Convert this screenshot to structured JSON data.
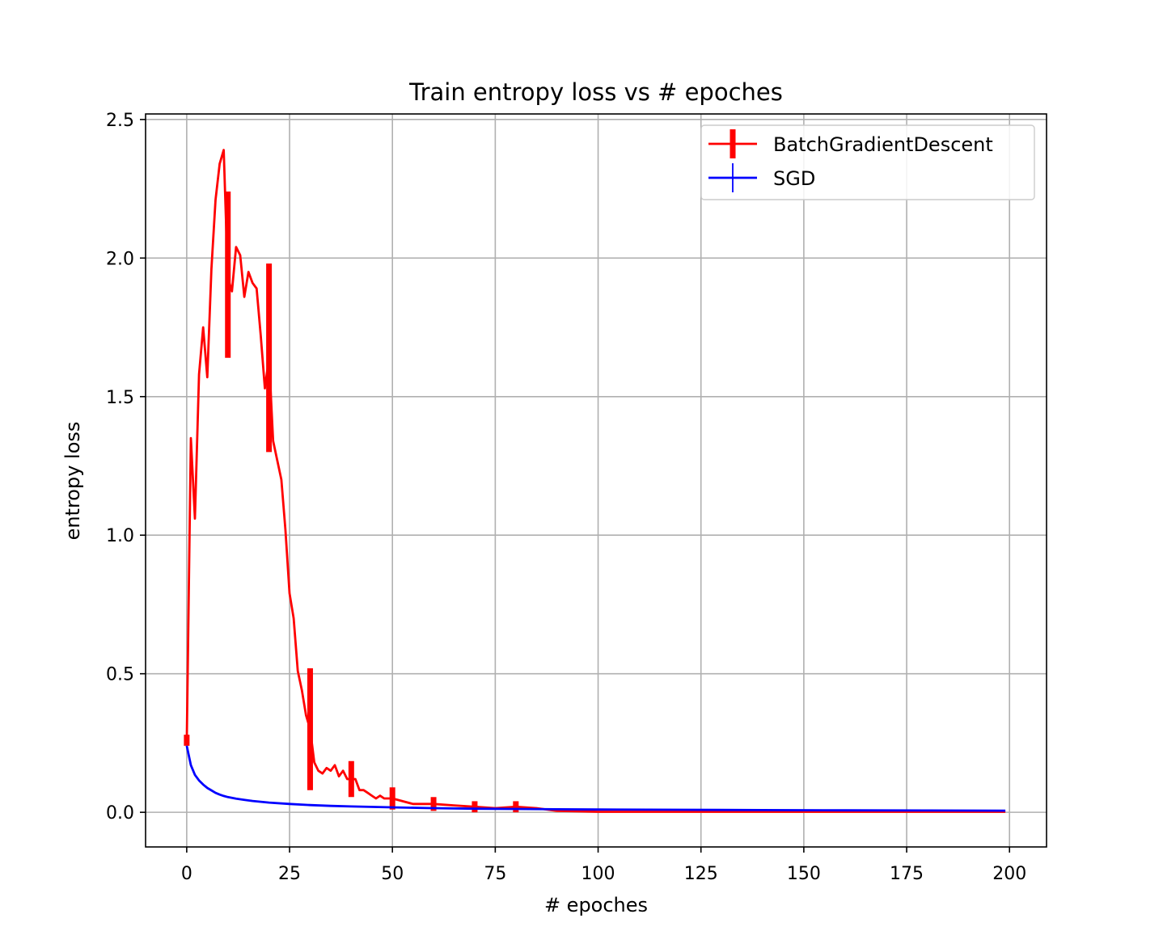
{
  "chart_data": {
    "type": "line",
    "title": "Train entropy loss vs # epoches",
    "xlabel": "# epoches",
    "ylabel": "entropy loss",
    "xlim": [
      -10,
      209
    ],
    "ylim": [
      -0.125,
      2.52
    ],
    "xticks": [
      0,
      25,
      50,
      75,
      100,
      125,
      150,
      175,
      200
    ],
    "yticks": [
      0.0,
      0.5,
      1.0,
      1.5,
      2.0,
      2.5
    ],
    "xtick_labels": [
      "0",
      "25",
      "50",
      "75",
      "100",
      "125",
      "150",
      "175",
      "200"
    ],
    "ytick_labels": [
      "0.0",
      "0.5",
      "1.0",
      "1.5",
      "2.0",
      "2.5"
    ],
    "grid": true,
    "legend_position": "top-right",
    "series": [
      {
        "name": "BatchGradientDescent",
        "color": "#ff0000",
        "x": [
          0,
          1,
          2,
          3,
          4,
          5,
          6,
          7,
          8,
          9,
          10,
          11,
          12,
          13,
          14,
          15,
          16,
          17,
          18,
          19,
          20,
          21,
          22,
          23,
          24,
          25,
          26,
          27,
          28,
          29,
          30,
          31,
          32,
          33,
          34,
          35,
          36,
          37,
          38,
          39,
          40,
          41,
          42,
          43,
          44,
          45,
          46,
          47,
          48,
          49,
          50,
          55,
          60,
          65,
          70,
          75,
          80,
          85,
          90,
          100,
          120,
          150,
          180,
          199
        ],
        "values": [
          0.25,
          1.35,
          1.06,
          1.58,
          1.75,
          1.57,
          1.96,
          2.21,
          2.34,
          2.39,
          1.93,
          1.88,
          2.04,
          2.01,
          1.86,
          1.95,
          1.91,
          1.89,
          1.72,
          1.53,
          1.64,
          1.34,
          1.27,
          1.2,
          1.02,
          0.79,
          0.7,
          0.51,
          0.44,
          0.35,
          0.3,
          0.18,
          0.15,
          0.14,
          0.16,
          0.15,
          0.17,
          0.13,
          0.15,
          0.12,
          0.12,
          0.12,
          0.08,
          0.08,
          0.07,
          0.06,
          0.05,
          0.06,
          0.05,
          0.05,
          0.05,
          0.03,
          0.03,
          0.025,
          0.02,
          0.015,
          0.02,
          0.015,
          0.005,
          0.002,
          0.002,
          0.002,
          0.002,
          0.002
        ],
        "error_bars": [
          {
            "x": 0,
            "y": 0.26,
            "err": 0.02
          },
          {
            "x": 10,
            "y": 1.94,
            "err": 0.3
          },
          {
            "x": 20,
            "y": 1.64,
            "err": 0.34
          },
          {
            "x": 30,
            "y": 0.3,
            "err": 0.22
          },
          {
            "x": 40,
            "y": 0.12,
            "err": 0.065
          },
          {
            "x": 50,
            "y": 0.05,
            "err": 0.04
          },
          {
            "x": 60,
            "y": 0.03,
            "err": 0.025
          },
          {
            "x": 70,
            "y": 0.02,
            "err": 0.02
          },
          {
            "x": 80,
            "y": 0.02,
            "err": 0.02
          }
        ]
      },
      {
        "name": "SGD",
        "color": "#0000ff",
        "x": [
          0,
          1,
          2,
          3,
          4,
          5,
          6,
          7,
          8,
          9,
          10,
          12,
          14,
          16,
          18,
          20,
          25,
          30,
          35,
          40,
          50,
          60,
          70,
          80,
          90,
          100,
          120,
          140,
          160,
          180,
          199
        ],
        "values": [
          0.24,
          0.17,
          0.135,
          0.115,
          0.1,
          0.088,
          0.079,
          0.07,
          0.064,
          0.059,
          0.055,
          0.049,
          0.045,
          0.041,
          0.038,
          0.035,
          0.03,
          0.026,
          0.023,
          0.021,
          0.018,
          0.015,
          0.013,
          0.012,
          0.011,
          0.01,
          0.009,
          0.008,
          0.007,
          0.0065,
          0.006
        ]
      }
    ]
  }
}
